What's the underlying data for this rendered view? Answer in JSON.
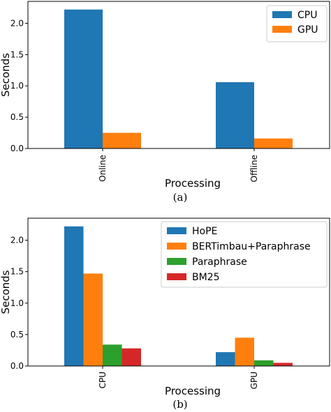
{
  "chart_data": [
    {
      "type": "bar",
      "caption": "(a)",
      "xlabel": "Processing",
      "ylabel": "Seconds",
      "categories": [
        "Online",
        "Offline"
      ],
      "yticks": [
        "0.0",
        "0.5",
        "1.0",
        "1.5",
        "2.0"
      ],
      "ylim": [
        0,
        2.35
      ],
      "legend_position": "top-right",
      "series": [
        {
          "name": "CPU",
          "color": "#1f77b4",
          "values": [
            2.22,
            1.06
          ]
        },
        {
          "name": "GPU",
          "color": "#ff7f0e",
          "values": [
            0.25,
            0.16
          ]
        }
      ]
    },
    {
      "type": "bar",
      "caption": "(b)",
      "xlabel": "Processing",
      "ylabel": "Seconds",
      "categories": [
        "CPU",
        "GPU"
      ],
      "yticks": [
        "0.0",
        "0.5",
        "1.0",
        "1.5",
        "2.0"
      ],
      "ylim": [
        0,
        2.35
      ],
      "legend_position": "top-right",
      "series": [
        {
          "name": "HoPE",
          "color": "#1f77b4",
          "values": [
            2.22,
            0.22
          ]
        },
        {
          "name": "BERTimbau+Paraphrase",
          "color": "#ff7f0e",
          "values": [
            1.47,
            0.45
          ]
        },
        {
          "name": "Paraphrase",
          "color": "#2ca02c",
          "values": [
            0.34,
            0.09
          ]
        },
        {
          "name": "BM25",
          "color": "#d62728",
          "values": [
            0.28,
            0.05
          ]
        }
      ]
    }
  ]
}
